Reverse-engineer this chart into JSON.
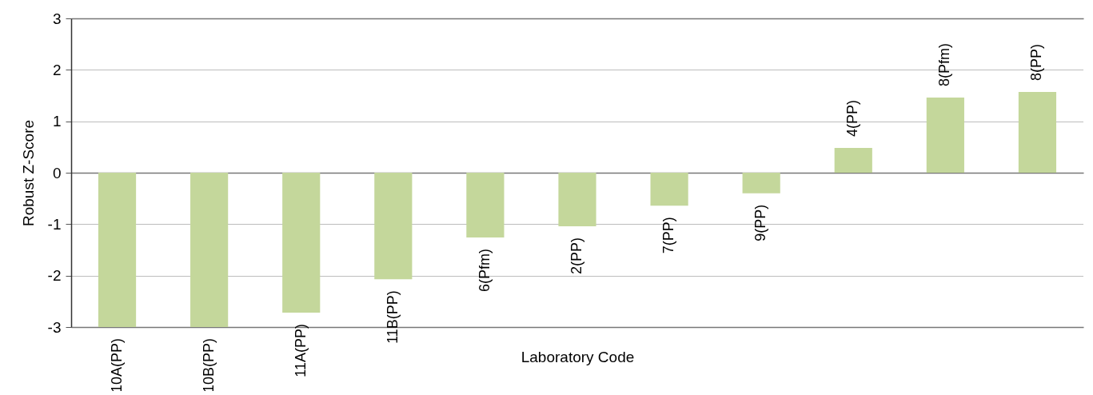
{
  "chart_data": {
    "type": "bar",
    "xlabel": "Laboratory Code",
    "ylabel": "Robust Z-Score",
    "categories": [
      "10A(PP)",
      "10B(PP)",
      "11A(PP)",
      "11B(PP)",
      "6(Pfm)",
      "2(PP)",
      "7(PP)",
      "9(PP)",
      "4(PP)",
      "8(Pfm)",
      "8(PP)"
    ],
    "values": [
      -3,
      -3,
      -2.72,
      -2.07,
      -1.26,
      -1.04,
      -0.64,
      -0.4,
      0.48,
      1.46,
      1.57
    ],
    "color": "#c4d79b",
    "ylim": [
      -3,
      3
    ],
    "yticks": [
      -3,
      -2,
      -1,
      0,
      1,
      2,
      3
    ],
    "grid": "y"
  }
}
